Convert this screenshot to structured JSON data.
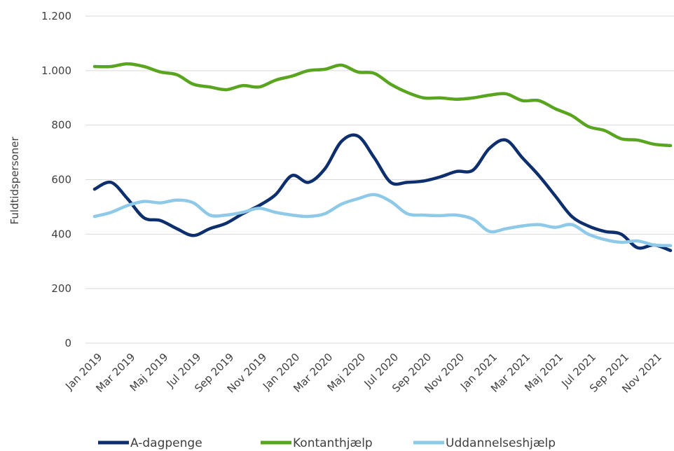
{
  "chart_data": {
    "type": "line",
    "y_label": "Fuldtidspersoner",
    "categories": [
      "Jan 2019",
      null,
      "Mar 2019",
      null,
      "Maj 2019",
      null,
      "Jul 2019",
      null,
      "Sep 2019",
      null,
      "Nov 2019",
      null,
      "Jan 2020",
      null,
      "Mar 2020",
      null,
      "Maj 2020",
      null,
      "Jul 2020",
      null,
      "Sep 2020",
      null,
      "Nov 2020",
      null,
      "Jan 2021",
      null,
      "Mar 2021",
      null,
      "Maj 2021",
      null,
      "Jul 2021",
      null,
      "Sep 2021",
      null,
      "Nov 2021",
      null
    ],
    "series": [
      {
        "name": "A-dagpenge",
        "color": "#0e2f6e",
        "values": [
          565,
          590,
          530,
          460,
          450,
          420,
          395,
          420,
          440,
          475,
          505,
          545,
          615,
          590,
          640,
          740,
          760,
          680,
          590,
          590,
          595,
          610,
          630,
          635,
          715,
          745,
          680,
          615,
          540,
          465,
          430,
          410,
          400,
          350,
          360,
          340
        ]
      },
      {
        "name": "Kontanthjælp",
        "color": "#5aa51f",
        "values": [
          1015,
          1015,
          1025,
          1015,
          995,
          985,
          950,
          940,
          930,
          945,
          940,
          965,
          980,
          1000,
          1005,
          1020,
          995,
          990,
          950,
          920,
          900,
          900,
          895,
          900,
          910,
          915,
          890,
          890,
          860,
          835,
          795,
          780,
          750,
          745,
          730,
          725
        ]
      },
      {
        "name": "Uddannelseshjælp",
        "color": "#8ecae8",
        "values": [
          465,
          480,
          505,
          520,
          515,
          525,
          515,
          470,
          470,
          480,
          495,
          480,
          470,
          465,
          475,
          510,
          530,
          545,
          520,
          475,
          470,
          468,
          470,
          455,
          410,
          420,
          430,
          435,
          425,
          435,
          400,
          380,
          370,
          375,
          360,
          358
        ]
      }
    ],
    "ylim": [
      0,
      1200
    ],
    "yticks": [
      0,
      200,
      400,
      600,
      800,
      {
        "value": 1000,
        "label": "1.000"
      },
      {
        "value": 1200,
        "label": "1.200"
      }
    ],
    "grid": true,
    "legend": "bottom"
  }
}
